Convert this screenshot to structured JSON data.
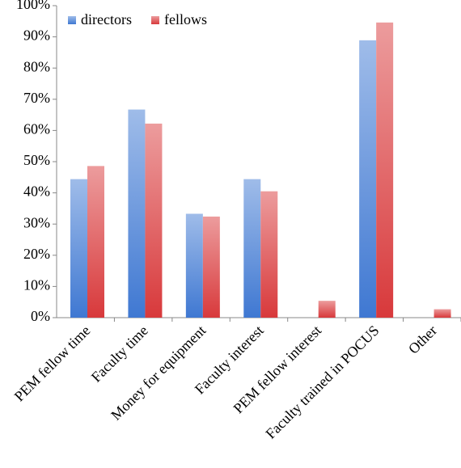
{
  "chart_data": {
    "type": "bar",
    "categories": [
      "PEM fellow time",
      "Faculty time",
      "Money for equipment",
      "Faculty interest",
      "PEM fellow interest",
      "Faculty trained in POCUS",
      "Other"
    ],
    "series": [
      {
        "name": "directors",
        "color": "#3f78d2",
        "values": [
          44.4,
          66.7,
          33.3,
          44.4,
          0,
          88.9,
          0
        ]
      },
      {
        "name": "fellows",
        "color": "#d8393b",
        "values": [
          48.6,
          62.2,
          32.4,
          40.5,
          5.4,
          94.6,
          2.7
        ]
      }
    ],
    "ylim": [
      0,
      100
    ],
    "yticks": [
      {
        "value": 0,
        "label": "0%"
      },
      {
        "value": 10,
        "label": "10%"
      },
      {
        "value": 20,
        "label": "20%"
      },
      {
        "value": 30,
        "label": "30%"
      },
      {
        "value": 40,
        "label": "40%"
      },
      {
        "value": 50,
        "label": "50%"
      },
      {
        "value": 60,
        "label": "60%"
      },
      {
        "value": 70,
        "label": "70%"
      },
      {
        "value": 80,
        "label": "80%"
      },
      {
        "value": 90,
        "label": "90%"
      },
      {
        "value": 100,
        "label": "100%"
      }
    ],
    "grid": false,
    "legend": "top-left"
  }
}
